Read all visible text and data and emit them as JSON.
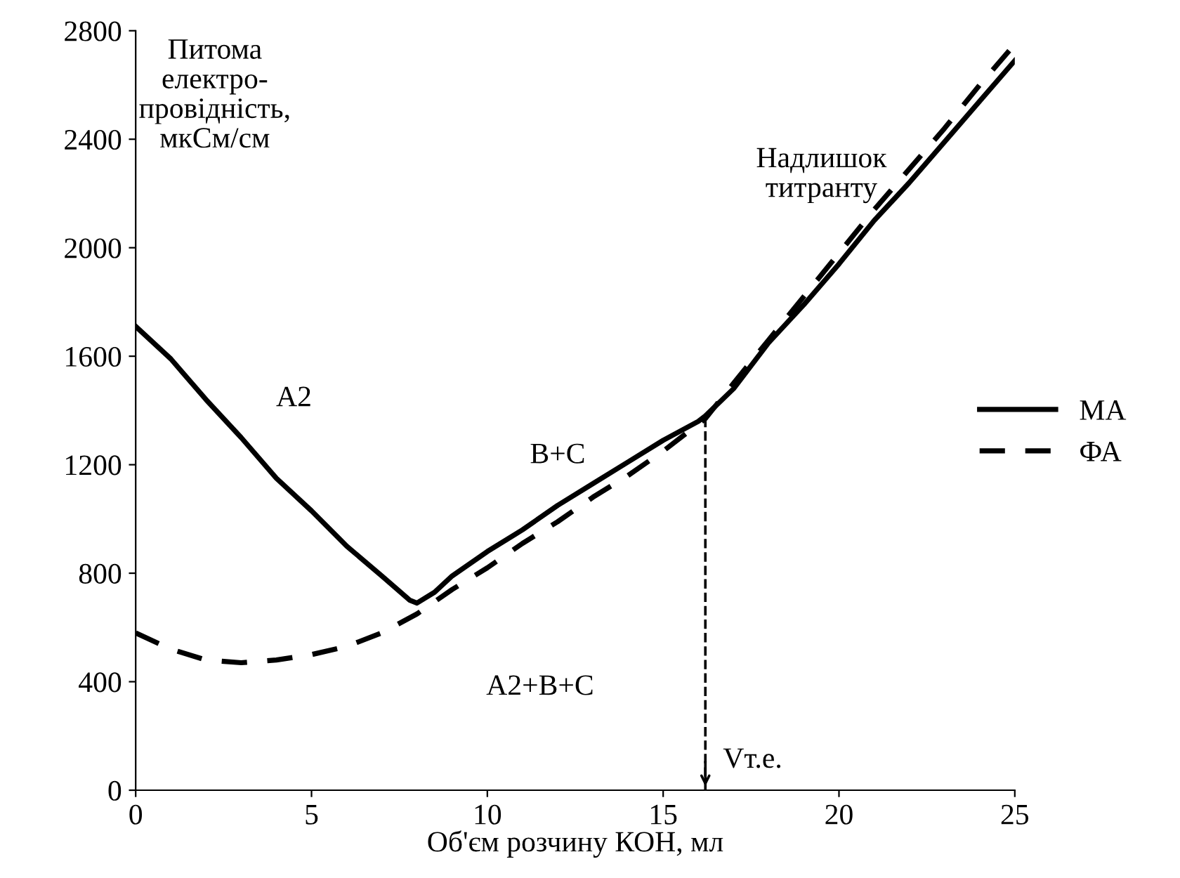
{
  "chart_data": {
    "type": "line",
    "xlabel": "Об'єм розчину КОН, мл",
    "ylabel": "Питома\nелектро-\nпровідність,\nмкСм/см",
    "xlim": [
      0,
      25
    ],
    "xticks": [
      0,
      5,
      10,
      15,
      20,
      25
    ],
    "ylim": [
      0,
      2800
    ],
    "yticks": [
      0,
      400,
      800,
      1200,
      1600,
      2000,
      2400,
      2800
    ],
    "grid": false,
    "legend": "right",
    "marker": "none",
    "series": [
      {
        "name": "МА",
        "color": "#000000",
        "line_style": "solid",
        "x": [
          0,
          1,
          2,
          3,
          4,
          5,
          6,
          7,
          7.8,
          8,
          8.5,
          9,
          10,
          11,
          12,
          13,
          14,
          15,
          16,
          16.2,
          17,
          18,
          19,
          20,
          21,
          22,
          23,
          24,
          25
        ],
        "values": [
          1710,
          1590,
          1440,
          1300,
          1150,
          1030,
          900,
          790,
          700,
          690,
          730,
          790,
          880,
          960,
          1050,
          1130,
          1210,
          1290,
          1360,
          1380,
          1480,
          1650,
          1790,
          1940,
          2100,
          2240,
          2390,
          2540,
          2690
        ]
      },
      {
        "name": "ФА",
        "color": "#000000",
        "line_style": "dashed",
        "x": [
          0,
          1,
          2,
          3,
          4,
          5,
          6,
          7,
          8,
          9,
          10,
          11,
          12,
          13,
          14,
          15,
          16,
          16.2,
          17,
          18,
          19,
          20,
          21,
          22,
          23,
          24,
          25
        ],
        "values": [
          580,
          520,
          480,
          470,
          480,
          500,
          530,
          580,
          650,
          740,
          820,
          910,
          990,
          1080,
          1160,
          1250,
          1350,
          1370,
          1500,
          1660,
          1820,
          1980,
          2140,
          2290,
          2440,
          2600,
          2750
        ]
      }
    ],
    "ref_lines": [
      {
        "axis": "x",
        "value": 16.2,
        "label": "Vт.е.",
        "color": "#000000",
        "line_style": "dashed"
      }
    ],
    "annotations": [
      "А2",
      "В+С",
      "А2+В+С",
      "Надлишок\nтитранту"
    ]
  }
}
